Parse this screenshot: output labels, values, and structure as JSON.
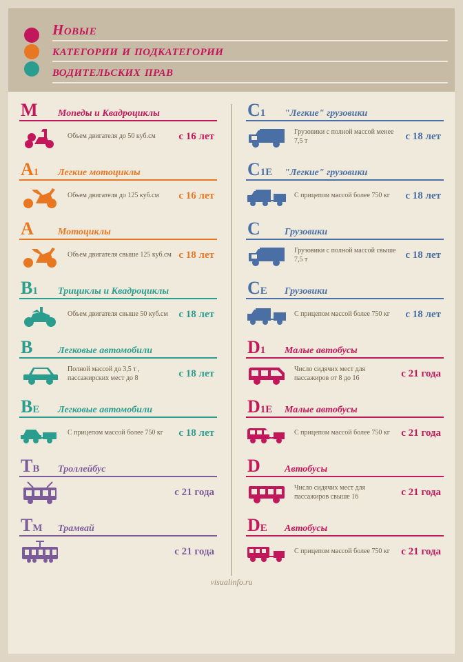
{
  "title": {
    "line1": "Новые",
    "line2": "категории и подкатегории",
    "line3": "водительских прав",
    "color": "#c2185b",
    "fontsize": 21
  },
  "trafficLight": {
    "red": "#c2185b",
    "yellow": "#e87722",
    "green": "#2a9d8f"
  },
  "background": "#f0eadd",
  "outer_bg": "#e0d6c5",
  "header_bg": "#c7bba5",
  "palette": {
    "magenta": "#c2185b",
    "orange": "#e87722",
    "teal": "#2a9d8f",
    "blue": "#4a6fa5",
    "purple": "#7c5b99"
  },
  "columns": {
    "left": [
      {
        "code": "M",
        "sub": "",
        "title": "Мопеды и Квадроциклы",
        "desc": "Объем двигателя до 50 куб.см",
        "age": "с 16 лет",
        "color": "magenta",
        "icon": "moped"
      },
      {
        "code": "A",
        "sub": "1",
        "title": "Легкие мотоциклы",
        "desc": "Объем двигателя до 125 куб.см",
        "age": "с 16 лет",
        "color": "orange",
        "icon": "moto"
      },
      {
        "code": "A",
        "sub": "",
        "title": "Мотоциклы",
        "desc": "Объем двигателя свыше 125 куб.см",
        "age": "с 18 лет",
        "color": "orange",
        "icon": "moto"
      },
      {
        "code": "B",
        "sub": "1",
        "title": "Трициклы и Квадроциклы",
        "desc": "Объем двигателя свыше 50 куб.см",
        "age": "с 18 лет",
        "color": "teal",
        "icon": "quad"
      },
      {
        "code": "B",
        "sub": "",
        "title": "Легковые автомобили",
        "desc": "Полной массой до 3,5 т , пассажирских мест до 8",
        "age": "с 18 лет",
        "color": "teal",
        "icon": "car"
      },
      {
        "code": "B",
        "sub": "E",
        "title": "Легковые автомобили",
        "desc": "С прицепом массой более 750 кг",
        "age": "с 18 лет",
        "color": "teal",
        "icon": "car-trailer"
      },
      {
        "code": "T",
        "sub": "B",
        "title": "Троллейбус",
        "desc": "",
        "age": "с 21 года",
        "color": "purple",
        "icon": "trolley"
      },
      {
        "code": "T",
        "sub": "M",
        "title": "Трамвай",
        "desc": "",
        "age": "с 21 года",
        "color": "purple",
        "icon": "tram"
      }
    ],
    "right": [
      {
        "code": "C",
        "sub": "1",
        "title": "\"Легкие\" грузовики",
        "desc": "Грузовики с полной массой менее 7,5 т",
        "age": "с 18 лет",
        "color": "blue",
        "icon": "truck"
      },
      {
        "code": "C",
        "sub": "1E",
        "title": "\"Легкие\" грузовики",
        "desc": "С прицепом массой более 750 кг",
        "age": "с 18 лет",
        "color": "blue",
        "icon": "truck-trailer"
      },
      {
        "code": "C",
        "sub": "",
        "title": "Грузовики",
        "desc": "Грузовики с полной массой свыше 7,5 т",
        "age": "с 18 лет",
        "color": "blue",
        "icon": "truck"
      },
      {
        "code": "C",
        "sub": "E",
        "title": "Грузовики",
        "desc": "С прицепом массой более 750 кг",
        "age": "с 18 лет",
        "color": "blue",
        "icon": "truck-trailer"
      },
      {
        "code": "D",
        "sub": "1",
        "title": "Малые автобусы",
        "desc": "Число сидячих мест для пассажиров от 8 до 16",
        "age": "с 21 года",
        "color": "magenta",
        "icon": "minibus"
      },
      {
        "code": "D",
        "sub": "1E",
        "title": "Малые автобусы",
        "desc": "С прицепом массой более 750 кг",
        "age": "с 21 года",
        "color": "magenta",
        "icon": "minibus-trailer"
      },
      {
        "code": "D",
        "sub": "",
        "title": "Автобусы",
        "desc": "Число сидячих мест для пассажиров свыше 16",
        "age": "с 21 года",
        "color": "magenta",
        "icon": "bus"
      },
      {
        "code": "D",
        "sub": "E",
        "title": "Автобусы",
        "desc": "С прицепом массой более 750 кг",
        "age": "с 21 года",
        "color": "magenta",
        "icon": "bus-trailer"
      }
    ]
  },
  "footer": "visualinfo.ru",
  "icons": {
    "moped": "<svg viewBox='0 0 60 40'><g fill='COLOR'><circle cx='14' cy='30' r='6'/><circle cx='44' cy='30' r='6'/><path d='M12 30 L22 30 L28 20 L36 20 L36 12 L32 12 L34 8 L40 8 L40 20 L44 30 M18 14 a6 6 0 1 1 0 12 a6 6 0 1 1 0 -12' /></g></svg>",
    "moto": "<svg viewBox='0 0 60 40'><g fill='COLOR'><circle cx='13' cy='30' r='7'/><circle cx='47' cy='30' r='7'/><path d='M10 30 L24 30 L30 18 L22 14 L18 10 L26 10 L34 18 L44 14 L48 8 L52 10 L46 18 L50 30'/></g></svg>",
    "quad": "<svg viewBox='0 0 60 40'><g fill='COLOR'><circle cx='14' cy='30' r='7'/><circle cx='46' cy='30' r='7'/><path d='M14 30 L20 18 L30 16 L30 8 L34 8 L34 16 L44 20 L46 30 L14 30 M18 16 L26 12 L30 16'/></g></svg>",
    "car": "<svg viewBox='0 0 60 40'><g fill='COLOR'><path d='M6 28 L6 22 Q6 20 8 20 L14 20 L20 10 L42 10 L50 20 L54 20 Q56 20 56 22 L56 28 L6 28'/><circle cx='18' cy='30' r='5'/><circle cx='44' cy='30' r='5'/><path fill='#f0eadd' d='M22 12 L40 12 L46 20 L18 20 Z'/></g></svg>",
    "car-trailer": "<svg viewBox='0 0 60 40'><g fill='COLOR'><path d='M2 28 L2 22 L6 22 L10 14 L24 14 L30 22 L32 22 L32 28 Z'/><circle cx='10' cy='30' r='4'/><circle cx='24' cy='30' r='4'/><path d='M34 28 L34 18 L54 18 L54 28 Z'/><circle cx='44' cy='30' r='4'/><rect x='32' y='25' width='4' height='2'/></g></svg>",
    "trolley": "<svg viewBox='0 0 60 40'><g fill='COLOR'><rect x='6' y='12' width='48' height='18' rx='2'/><circle cx='16' cy='32' r='4'/><circle cx='44' cy='32' r='4'/><path fill='#f0eadd' d='M10 16 h8 v8 h-8z M22 16 h8 v8 h-8z M34 16 h8 v8 h-8z M46 16 h6 v8 h-6z'/><path d='M20 12 L12 4 M40 12 L48 4' stroke='COLOR' stroke-width='2'/></g></svg>",
    "tram": "<svg viewBox='0 0 60 40'><g fill='COLOR'><rect x='4' y='12' width='52' height='18' rx='2'/><circle cx='14' cy='32' r='3'/><circle cx='22' cy='32' r='3'/><circle cx='38' cy='32' r='3'/><circle cx='46' cy='32' r='3'/><path fill='#f0eadd' d='M8 16 h6 v8 h-6z M18 16 h6 v8 h-6z M28 16 h6 v8 h-6z M38 16 h6 v8 h-6z M48 16 h6 v8 h-6z'/><path d='M30 12 L30 4 M24 4 L36 4' stroke='COLOR' stroke-width='2'/></g></svg>",
    "truck": "<svg viewBox='0 0 60 40'><g fill='COLOR'><rect x='20' y='8' width='36' height='20'/><path d='M4 28 L4 16 L14 16 L18 10 L20 10 L20 28 Z'/><circle cx='14' cy='30' r='5'/><circle cx='44' cy='30' r='5'/><path fill='#f0eadd' d='M8 18 h8 v6 h-8z'/></g></svg>",
    "truck-trailer": "<svg viewBox='0 0 60 40'><g fill='COLOR'><rect x='14' y='10' width='22' height='18'/><path d='M2 28 L2 18 L8 18 L12 12 L14 12 L14 28 Z'/><circle cx='10' cy='30' r='4'/><circle cx='28' cy='30' r='4'/><rect x='40' y='16' width='18' height='12'/><circle cx='49' cy='30' r='4'/><rect x='36' y='25' width='4' height='2'/></g></svg>",
    "minibus": "<svg viewBox='0 0 60 40'><g fill='COLOR'><path d='M4 28 L4 14 Q4 10 8 10 L48 10 L56 18 L56 28 Z'/><circle cx='16' cy='30' r='5'/><circle cx='44' cy='30' r='5'/><path fill='#f0eadd' d='M8 14 h10 v8 h-10z M22 14 h10 v8 h-10z M36 14 h10 l6 6 v2 h-16z'/></g></svg>",
    "minibus-trailer": "<svg viewBox='0 0 60 40'><g fill='COLOR'><path d='M2 28 L2 16 Q2 12 6 12 L28 12 L34 18 L34 28 Z'/><circle cx='10' cy='30' r='4'/><circle cx='26' cy='30' r='4'/><path fill='#f0eadd' d='M6 15 h7 v6 h-7z M16 15 h7 v6 h-7z M26 15 h5 l3 3 v3 h-8z'/><rect x='40' y='18' width='16' height='10'/><circle cx='48' cy='30' r='4'/><rect x='34' y='25' width='6' height='2'/></g></svg>",
    "bus": "<svg viewBox='0 0 60 40'><g fill='COLOR'><rect x='4' y='10' width='52' height='18' rx='2'/><circle cx='16' cy='30' r='5'/><circle cx='44' cy='30' r='5'/><path fill='#f0eadd' d='M8 14 h8 v8 h-8z M20 14 h8 v8 h-8z M32 14 h8 v8 h-8z M44 14 h8 v8 h-8z'/></g></svg>",
    "bus-trailer": "<svg viewBox='0 0 60 40'><g fill='COLOR'><rect x='2' y='12' width='32' height='16' rx='2'/><circle cx='10' cy='30' r='4'/><circle cx='26' cy='30' r='4'/><path fill='#f0eadd' d='M5 15 h6 v6 h-6z M14 15 h6 v6 h-6z M23 15 h6 v6 h-6z'/><rect x='40' y='18' width='16' height='10'/><circle cx='48' cy='30' r='4'/><rect x='34' y='25' width='6' height='2'/></g></svg>"
  }
}
